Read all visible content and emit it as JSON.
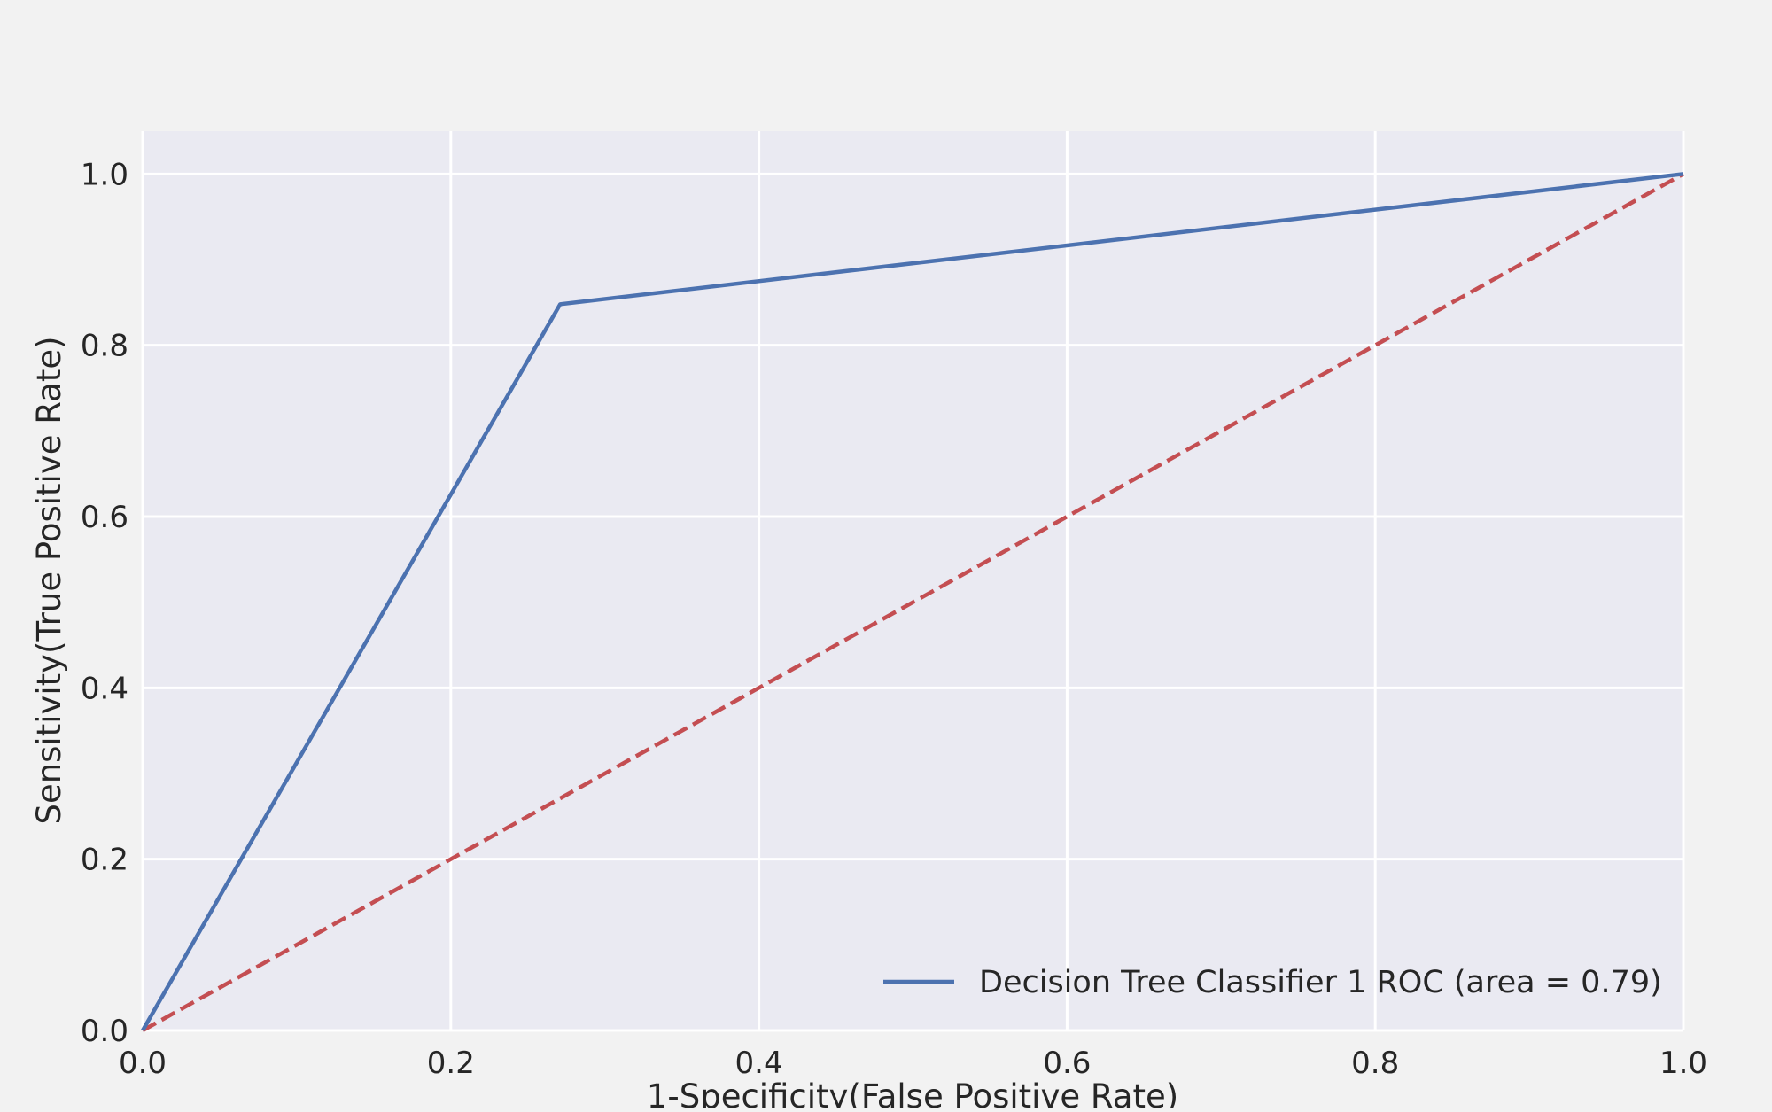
{
  "chart_data": {
    "type": "line",
    "title": "",
    "xlabel": "1-Specificity(False Positive Rate)",
    "ylabel": "Sensitivity(True Positive Rate)",
    "xlim": [
      0.0,
      1.0
    ],
    "ylim": [
      0.0,
      1.05
    ],
    "xticks": [
      "0.0",
      "0.2",
      "0.4",
      "0.6",
      "0.8",
      "1.0"
    ],
    "yticks": [
      "0.0",
      "0.2",
      "0.4",
      "0.6",
      "0.8",
      "1.0"
    ],
    "grid": true,
    "legend_position": "lower-right",
    "series": [
      {
        "name": "Decision Tree Classifier 1 ROC (area = 0.79)",
        "x": [
          0.0,
          0.271,
          1.0
        ],
        "y": [
          0.0,
          0.848,
          1.0
        ],
        "color": "#4c72b0",
        "style": "solid"
      },
      {
        "x": [
          0.0,
          1.0
        ],
        "y": [
          0.0,
          1.0
        ],
        "color": "#c44e52",
        "style": "dashed"
      }
    ],
    "colors": {
      "figure_background": "#f2f2f2",
      "plot_background": "#eaeaf2",
      "grid": "#ffffff",
      "text": "#262626"
    }
  }
}
